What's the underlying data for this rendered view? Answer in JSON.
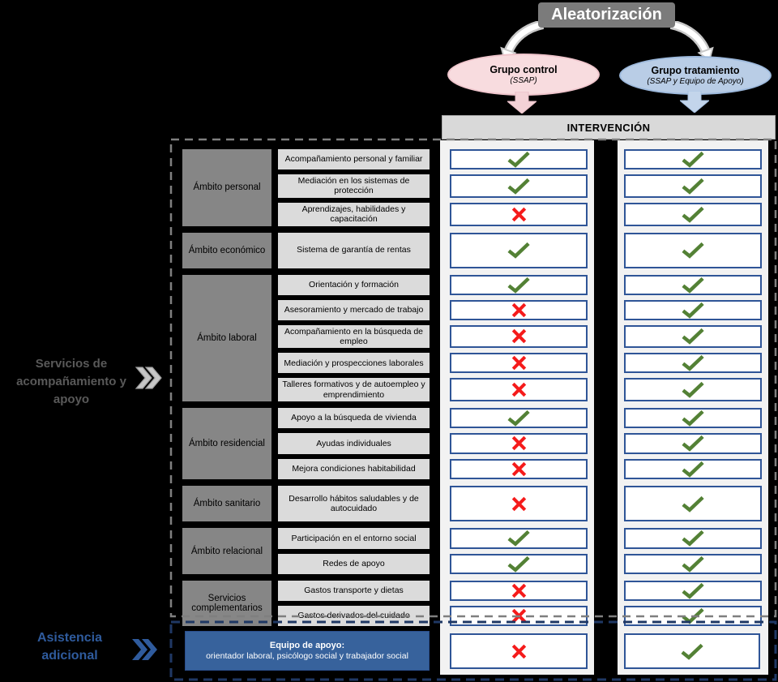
{
  "randomization_title": "Aleatorización",
  "groups": {
    "control": {
      "name": "Grupo control",
      "subtitle": "(SSAP)"
    },
    "treatment": {
      "name": "Grupo tratamiento",
      "subtitle": "(SSAP y Equipo de Apoyo)"
    }
  },
  "intervention_header": "INTERVENCIÓN",
  "side_labels": {
    "services": "Servicios de acompañamiento y apoyo",
    "additional": "Asistencia adicional"
  },
  "columns": {
    "control": "Grupo control",
    "treatment": "Grupo tratamiento"
  },
  "sections": [
    {
      "id": "personal",
      "label": "Ámbito personal",
      "services": [
        {
          "label": "Acompañamiento personal y familiar",
          "control": "check",
          "treatment": "check"
        },
        {
          "label": "Mediación en los sistemas de protección",
          "control": "check",
          "treatment": "check"
        },
        {
          "label": "Aprendizajes, habilidades y capacitación",
          "control": "cross",
          "treatment": "check"
        }
      ]
    },
    {
      "id": "economico",
      "label": "Ámbito económico",
      "services": [
        {
          "label": "Sistema de garantía de rentas",
          "control": "check",
          "treatment": "check"
        }
      ]
    },
    {
      "id": "laboral",
      "label": "Ámbito laboral",
      "services": [
        {
          "label": "Orientación y formación",
          "control": "check",
          "treatment": "check"
        },
        {
          "label": "Asesoramiento y mercado de trabajo",
          "control": "cross",
          "treatment": "check"
        },
        {
          "label": "Acompañamiento en la búsqueda de empleo",
          "control": "cross",
          "treatment": "check"
        },
        {
          "label": "Mediación y prospecciones laborales",
          "control": "cross",
          "treatment": "check"
        },
        {
          "label": "Talleres formativos y de autoempleo y emprendimiento",
          "control": "cross",
          "treatment": "check"
        }
      ]
    },
    {
      "id": "residencial",
      "label": "Ámbito residencial",
      "services": [
        {
          "label": "Apoyo a la búsqueda de vivienda",
          "control": "check",
          "treatment": "check"
        },
        {
          "label": "Ayudas individuales",
          "control": "cross",
          "treatment": "check"
        },
        {
          "label": "Mejora condiciones habitabilidad",
          "control": "cross",
          "treatment": "check"
        }
      ]
    },
    {
      "id": "sanitario",
      "label": "Ámbito sanitario",
      "services": [
        {
          "label": "Desarrollo hábitos saludables y de autocuidado",
          "control": "cross",
          "treatment": "check"
        }
      ]
    },
    {
      "id": "relacional",
      "label": "Ámbito relacional",
      "services": [
        {
          "label": "Participación en el entorno social",
          "control": "check",
          "treatment": "check"
        },
        {
          "label": "Redes de apoyo",
          "control": "check",
          "treatment": "check"
        }
      ]
    },
    {
      "id": "complementarios",
      "label": "Servicios complementarios",
      "services": [
        {
          "label": "Gastos transporte y dietas",
          "control": "cross",
          "treatment": "check"
        },
        {
          "label": "Gastos derivados del cuidado",
          "control": "cross",
          "treatment": "check"
        }
      ]
    }
  ],
  "support_team": {
    "title": "Equipo de apoyo:",
    "subtitle": "orientador laboral, psicólogo social y trabajador social",
    "control": "cross",
    "treatment": "check"
  },
  "colors": {
    "check_green": "#538135",
    "cross_red": "#F51B1B",
    "mark_box_border": "#2F5597",
    "support_box_blue": "#37629C",
    "control_pink": "#F8DCDF",
    "treatment_blue": "#B9CDE6",
    "additional_label_blue": "#2F5B9D",
    "randomization_gray": "#7B7B7B"
  }
}
